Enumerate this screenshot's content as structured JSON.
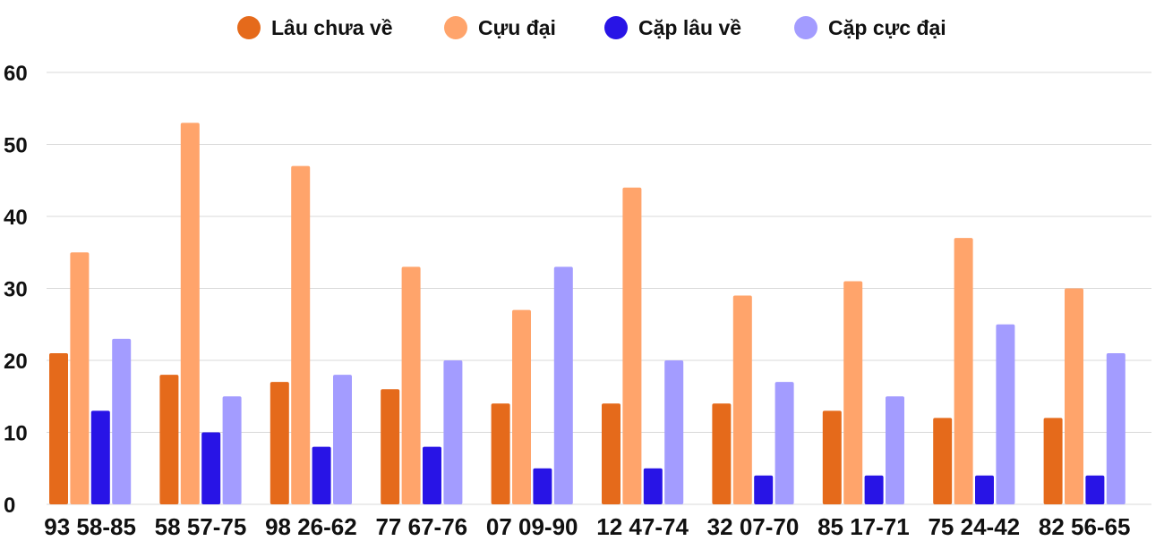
{
  "chart_data": {
    "type": "bar",
    "title": "",
    "xlabel": "",
    "ylabel": "",
    "ylim": [
      0,
      60
    ],
    "yticks": [
      0,
      10,
      20,
      30,
      40,
      50,
      60
    ],
    "grid": true,
    "legend_position": "top-center",
    "categories": [
      "93 58-85",
      "58 57-75",
      "98 26-62",
      "77 67-76",
      "07 09-90",
      "12 47-74",
      "32 07-70",
      "85 17-71",
      "75 24-42",
      "82 56-65"
    ],
    "series": [
      {
        "name": "Lâu chưa về",
        "color": "#e56a1b",
        "values": [
          21,
          18,
          17,
          16,
          14,
          14,
          14,
          13,
          12,
          12
        ]
      },
      {
        "name": "Cựu đại",
        "color": "#ffa46b",
        "values": [
          35,
          53,
          47,
          33,
          27,
          44,
          29,
          31,
          37,
          30
        ]
      },
      {
        "name": "Cặp lâu về",
        "color": "#2814e6",
        "values": [
          13,
          10,
          8,
          8,
          5,
          5,
          4,
          4,
          4,
          4
        ]
      },
      {
        "name": "Cặp cực đại",
        "color": "#a39cff",
        "values": [
          23,
          15,
          18,
          20,
          33,
          20,
          17,
          15,
          25,
          21
        ]
      }
    ]
  }
}
